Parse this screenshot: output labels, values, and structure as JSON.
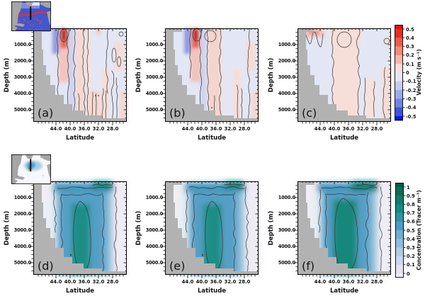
{
  "figure": {
    "rows": [
      {
        "id": "velocity-row",
        "xlabel": "Latitude",
        "ylabel": "Depth (m)",
        "x_ticks": [
          "44.0",
          "40.0",
          "36.0",
          "32.0",
          "28.0"
        ],
        "y_ticks": [
          "1000.0",
          "2000.0",
          "3000.0",
          "4000.0",
          "5000.0"
        ],
        "panels": [
          {
            "letter": "(a)"
          },
          {
            "letter": "(b)"
          },
          {
            "letter": "(c)"
          }
        ],
        "colorbar": {
          "title": "Velocity (m s⁻¹)",
          "ticks": [
            "0.5",
            "0.4",
            "0.3",
            "0.2",
            "0.1",
            "0",
            "-0.1",
            "-0.2",
            "-0.3",
            "-0.4",
            "-0.5"
          ]
        }
      },
      {
        "id": "tracer-row",
        "xlabel": "Latitude",
        "ylabel": "Depth (m)",
        "x_ticks": [
          "44.0",
          "40.0",
          "36.0",
          "32.0",
          "28.0"
        ],
        "y_ticks": [
          "1000.0",
          "2000.0",
          "3000.0",
          "4000.0",
          "5000.0"
        ],
        "panels": [
          {
            "letter": "(d)"
          },
          {
            "letter": "(e)"
          },
          {
            "letter": "(f)"
          }
        ],
        "colorbar": {
          "title": "Concentration (Tracer m⁻³)",
          "ticks": [
            "1",
            "0.9",
            "0.8",
            "0.7",
            "0.6",
            "0.5",
            "0.4",
            "0.3",
            "0.2",
            "0.1",
            "0"
          ]
        }
      }
    ],
    "insets": [
      {
        "name": "north-atlantic-velocity-map"
      },
      {
        "name": "north-atlantic-tracer-map"
      }
    ],
    "colors": {
      "bathymetry_gray": "#b2b2b2",
      "velocity_pos_max": "#ee0909",
      "velocity_neg_max": "#0a17ee",
      "tracer_max": "#0a5a42",
      "tracer_min": "#f4ecf2"
    }
  },
  "chart_data": [
    {
      "type": "heatmap",
      "subtype": "filled-contour-depth-section",
      "panels": [
        "(a)",
        "(b)",
        "(c)"
      ],
      "variable": "Velocity (m s⁻¹)",
      "xlabel": "Latitude",
      "ylabel": "Depth (m)",
      "x_ticks": [
        44.0,
        40.0,
        36.0,
        32.0,
        28.0
      ],
      "x_range": [
        50.4,
        24.0
      ],
      "x_axis_reversed": true,
      "y_ticks": [
        1000,
        2000,
        3000,
        4000,
        5000
      ],
      "y_range": [
        0,
        5750
      ],
      "y_axis_downward": true,
      "colorbar_ticks": [
        0.5,
        0.4,
        0.3,
        0.2,
        0.1,
        0,
        -0.1,
        -0.2,
        -0.3,
        -0.4,
        -0.5
      ],
      "colormap": "blue-white-red diverging, zero contour drawn in black",
      "grid": false,
      "notable_features": [
        "strong red (positive) cell near 41N in upper ~800 m in panels (a) and (b), with adjacent blue cell near 42N",
        "alternating weak pink/blue vertical bands through full depth in (a) and (b)",
        "panel (c) much smoother: one broad weak positive band ~38-33N and narrow bands near 27-25N",
        "gray bathymetry mask deepening from ~200 m at 47N to ~5500 m south of 40N, thin seafloor strip along bottom"
      ]
    },
    {
      "type": "heatmap",
      "subtype": "filled-contour-depth-section",
      "panels": [
        "(d)",
        "(e)",
        "(f)"
      ],
      "variable": "Concentration (Tracer m⁻³)",
      "xlabel": "Latitude",
      "ylabel": "Depth (m)",
      "x_ticks": [
        44.0,
        40.0,
        36.0,
        32.0,
        28.0
      ],
      "x_range": [
        50.4,
        24.0
      ],
      "x_axis_reversed": true,
      "y_ticks": [
        1000,
        2000,
        3000,
        4000,
        5000
      ],
      "y_range": [
        0,
        5750
      ],
      "y_axis_downward": true,
      "colorbar_ticks": [
        1,
        0.9,
        0.8,
        0.7,
        0.6,
        0.5,
        0.4,
        0.3,
        0.2,
        0.1,
        0
      ],
      "colormap": "pale pink-white through blue to dark teal-green",
      "grid": false,
      "notable_features": [
        "tracer plume fills ~43-26N at all depths, values decreasing toward 25N",
        "highest concentrations (~0.8-0.9) in a deep core near 37-34N below ~2500 m",
        "elevated band in upper ~800 m across the section with dark patch near 30-27N",
        "panel (f) core slightly wider/stronger than (d) and (e)",
        "same gray bathymetry mask as top row"
      ]
    }
  ]
}
